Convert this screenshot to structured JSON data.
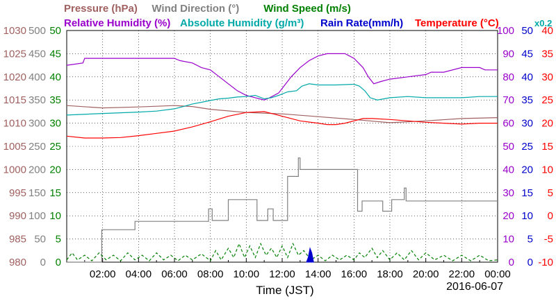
{
  "chart_data": {
    "type": "line",
    "date": "2016-06-07",
    "xlabel": "Time (JST)",
    "x_ticks": [
      "02:00",
      "04:00",
      "06:00",
      "08:00",
      "10:00",
      "12:00",
      "14:00",
      "16:00",
      "18:00",
      "20:00",
      "22:00",
      "00:00"
    ],
    "xlim_hours": [
      0,
      24
    ],
    "grid": true,
    "legend_row1": [
      {
        "name": "Pressure (hPa)",
        "color": "#a06060"
      },
      {
        "name": "Wind Direction (°)",
        "color": "#808080"
      },
      {
        "name": "Wind Speed (m/s)",
        "color": "#008000"
      }
    ],
    "legend_row2": [
      {
        "name": "Relative Humidity (%)",
        "color": "#9900cc"
      },
      {
        "name": "Absolute Humidity (g/m³)",
        "color": "#00a8a8"
      },
      {
        "name": "Rain Rate(mm/h)",
        "color": "#0000cc"
      },
      {
        "name": "Temperature (°C)",
        "color": "#ff0000"
      },
      {
        "name": "x0.2",
        "color": "#00a8a8"
      }
    ],
    "axes": [
      {
        "name": "Pressure",
        "unit": "hPa",
        "color": "#a06060",
        "ylim": [
          980,
          1030
        ],
        "ticks": [
          1030,
          1025,
          1020,
          1015,
          1010,
          1005,
          1000,
          995,
          990,
          985,
          980
        ]
      },
      {
        "name": "Wind Direction",
        "unit": "°",
        "color": "#808080",
        "ylim": [
          0,
          500
        ],
        "ticks": [
          500,
          450,
          400,
          350,
          300,
          250,
          200,
          150,
          100,
          50,
          0
        ]
      },
      {
        "name": "Wind Speed",
        "unit": "m/s",
        "color": "#008000",
        "ylim": [
          0,
          50
        ],
        "ticks": [
          50,
          45,
          40,
          35,
          30,
          25,
          20,
          15,
          10,
          5,
          0
        ]
      },
      {
        "name": "Relative Humidity",
        "unit": "%",
        "color": "#9900cc",
        "ylim": [
          0,
          100
        ],
        "ticks": [
          100,
          90,
          80,
          70,
          60,
          50,
          40,
          30,
          20,
          10,
          0
        ]
      },
      {
        "name": "Rain Rate",
        "unit": "mm/h",
        "color": "#0000cc",
        "ylim": [
          0,
          50
        ],
        "ticks": [
          50,
          45,
          40,
          35,
          30,
          25,
          20,
          15,
          10,
          5,
          0
        ]
      },
      {
        "name": "Temperature",
        "unit": "°C",
        "color": "#ff0000",
        "ylim": [
          -10,
          40
        ],
        "ticks": [
          40,
          35,
          30,
          25,
          20,
          15,
          10,
          5,
          0,
          -5,
          -10
        ]
      }
    ],
    "series": [
      {
        "name": "Pressure (hPa)",
        "axis": 0,
        "color": "#a06060",
        "points": [
          [
            0,
            1013.8
          ],
          [
            2,
            1013.3
          ],
          [
            4,
            1013.5
          ],
          [
            6,
            1013.8
          ],
          [
            7,
            1013.6
          ],
          [
            8,
            1013.0
          ],
          [
            10,
            1012.3
          ],
          [
            12,
            1012.0
          ],
          [
            14,
            1011.4
          ],
          [
            16,
            1010.8
          ],
          [
            18,
            1010.1
          ],
          [
            20,
            1010.5
          ],
          [
            22,
            1011.0
          ],
          [
            24,
            1011.2
          ]
        ]
      },
      {
        "name": "Wind Direction (°)",
        "axis": 1,
        "color": "#808080",
        "step": true,
        "points": [
          [
            0,
            0
          ],
          [
            1.95,
            0
          ],
          [
            1.95,
            70
          ],
          [
            3.8,
            70
          ],
          [
            3.8,
            88
          ],
          [
            7.9,
            88
          ],
          [
            7.9,
            115
          ],
          [
            8.1,
            115
          ],
          [
            8.1,
            90
          ],
          [
            9,
            90
          ],
          [
            9,
            135
          ],
          [
            10.6,
            135
          ],
          [
            10.6,
            90
          ],
          [
            11.2,
            90
          ],
          [
            11.2,
            115
          ],
          [
            11.5,
            115
          ],
          [
            11.5,
            90
          ],
          [
            12.3,
            90
          ],
          [
            12.3,
            185
          ],
          [
            12.9,
            185
          ],
          [
            12.9,
            225
          ],
          [
            13.0,
            225
          ],
          [
            13.0,
            200
          ],
          [
            16.2,
            200
          ],
          [
            16.2,
            110
          ],
          [
            16.45,
            110
          ],
          [
            16.45,
            132
          ],
          [
            17.6,
            132
          ],
          [
            17.6,
            110
          ],
          [
            18.1,
            110
          ],
          [
            18.1,
            135
          ],
          [
            18.8,
            135
          ],
          [
            18.8,
            160
          ],
          [
            18.9,
            160
          ],
          [
            18.9,
            132
          ],
          [
            24,
            132
          ]
        ]
      },
      {
        "name": "Wind Speed (m/s)",
        "axis": 2,
        "color": "#008000",
        "dashed": true,
        "points": [
          [
            0,
            0.5
          ],
          [
            0.3,
            2
          ],
          [
            0.6,
            0.5
          ],
          [
            1,
            1.5
          ],
          [
            1.4,
            0.3
          ],
          [
            1.8,
            2
          ],
          [
            2.2,
            0.5
          ],
          [
            2.6,
            1.5
          ],
          [
            3,
            0.3
          ],
          [
            3.4,
            2
          ],
          [
            3.8,
            0.5
          ],
          [
            4.2,
            1.5
          ],
          [
            4.6,
            0.3
          ],
          [
            5,
            2
          ],
          [
            5.4,
            0.5
          ],
          [
            5.8,
            1.5
          ],
          [
            6.2,
            0.3
          ],
          [
            6.6,
            1.5
          ],
          [
            7,
            0.5
          ],
          [
            7.5,
            1.8
          ],
          [
            8,
            0.3
          ],
          [
            8.3,
            2.5
          ],
          [
            8.6,
            0.5
          ],
          [
            9,
            3
          ],
          [
            9.3,
            1
          ],
          [
            9.6,
            4
          ],
          [
            9.9,
            1
          ],
          [
            10.2,
            3.5
          ],
          [
            10.5,
            1
          ],
          [
            10.8,
            4
          ],
          [
            11.1,
            1.5
          ],
          [
            11.4,
            3
          ],
          [
            11.7,
            1
          ],
          [
            12,
            3.5
          ],
          [
            12.3,
            1
          ],
          [
            12.6,
            4
          ],
          [
            12.9,
            1.5
          ],
          [
            13.2,
            2.5
          ],
          [
            13.6,
            0.5
          ],
          [
            14,
            1.5
          ],
          [
            14.4,
            0.3
          ],
          [
            14.8,
            1.5
          ],
          [
            15.2,
            0.5
          ],
          [
            15.6,
            1.5
          ],
          [
            16,
            0.5
          ],
          [
            16.3,
            2
          ],
          [
            16.6,
            1
          ],
          [
            17,
            3
          ],
          [
            17.3,
            1
          ],
          [
            17.6,
            2.5
          ],
          [
            18,
            0.5
          ],
          [
            18.4,
            2
          ],
          [
            18.8,
            0.5
          ],
          [
            19.2,
            2.5
          ],
          [
            19.6,
            0.5
          ],
          [
            20,
            2
          ],
          [
            20.5,
            0.5
          ],
          [
            21,
            1.5
          ],
          [
            21.5,
            0.3
          ],
          [
            22,
            1.5
          ],
          [
            22.5,
            0.3
          ],
          [
            23,
            1.5
          ],
          [
            23.5,
            0.3
          ],
          [
            24,
            0.5
          ]
        ]
      },
      {
        "name": "Relative Humidity (%)",
        "axis": 3,
        "color": "#9900cc",
        "points": [
          [
            0,
            85
          ],
          [
            0.9,
            86
          ],
          [
            1,
            88
          ],
          [
            2,
            88
          ],
          [
            6,
            88
          ],
          [
            6.3,
            87
          ],
          [
            7,
            86
          ],
          [
            7.5,
            84
          ],
          [
            8,
            83
          ],
          [
            8.5,
            80
          ],
          [
            9,
            77
          ],
          [
            9.5,
            74
          ],
          [
            10,
            72
          ],
          [
            10.5,
            71
          ],
          [
            11,
            70
          ],
          [
            11.3,
            71
          ],
          [
            11.8,
            73
          ],
          [
            12.2,
            77
          ],
          [
            12.5,
            80
          ],
          [
            13,
            84
          ],
          [
            13.5,
            87
          ],
          [
            14,
            89
          ],
          [
            14.5,
            90
          ],
          [
            15,
            90
          ],
          [
            15.5,
            90
          ],
          [
            16,
            88
          ],
          [
            16.5,
            84
          ],
          [
            16.8,
            80
          ],
          [
            17.1,
            77
          ],
          [
            17.5,
            78
          ],
          [
            18,
            79
          ],
          [
            19,
            80
          ],
          [
            20,
            81
          ],
          [
            20.3,
            82
          ],
          [
            21,
            82
          ],
          [
            22,
            84
          ],
          [
            23,
            84
          ],
          [
            23.3,
            83
          ],
          [
            24,
            83
          ]
        ]
      },
      {
        "name": "Absolute Humidity (g/m³)",
        "axis": 3,
        "color": "#00a8a8",
        "points": [
          [
            0,
            63.5
          ],
          [
            2,
            64.2
          ],
          [
            4,
            64.8
          ],
          [
            5,
            65.2
          ],
          [
            6,
            66.2
          ],
          [
            6.5,
            67.2
          ],
          [
            7,
            68.3
          ],
          [
            7.5,
            69
          ],
          [
            8,
            69.8
          ],
          [
            8.5,
            70.5
          ],
          [
            9,
            70.8
          ],
          [
            9.5,
            71.3
          ],
          [
            10,
            71.5
          ],
          [
            10.5,
            72
          ],
          [
            11,
            70.5
          ],
          [
            11.4,
            71
          ],
          [
            11.8,
            72
          ],
          [
            12.3,
            73.5
          ],
          [
            12.8,
            74
          ],
          [
            13.1,
            76
          ],
          [
            13.5,
            77
          ],
          [
            14,
            76.5
          ],
          [
            15,
            76.5
          ],
          [
            16,
            76.8
          ],
          [
            16.3,
            76
          ],
          [
            16.6,
            74
          ],
          [
            16.9,
            71
          ],
          [
            17.3,
            70
          ],
          [
            18,
            71
          ],
          [
            19,
            71.5
          ],
          [
            20,
            71
          ],
          [
            21,
            71
          ],
          [
            22,
            71
          ],
          [
            23,
            71.5
          ],
          [
            24,
            71.5
          ]
        ]
      },
      {
        "name": "Rain Rate(mm/h)",
        "axis": 4,
        "color": "#0000cc",
        "area": true,
        "points": [
          [
            13.35,
            0
          ],
          [
            13.45,
            1
          ],
          [
            13.55,
            3
          ],
          [
            13.65,
            2
          ],
          [
            13.75,
            0
          ]
        ]
      },
      {
        "name": "Temperature (°C)",
        "axis": 5,
        "color": "#ff0000",
        "points": [
          [
            0,
            17.2
          ],
          [
            1,
            16.8
          ],
          [
            2,
            16.8
          ],
          [
            3,
            16.9
          ],
          [
            4,
            17.3
          ],
          [
            5,
            17.8
          ],
          [
            6,
            18.3
          ],
          [
            7,
            19.2
          ],
          [
            8,
            20.3
          ],
          [
            9,
            21.5
          ],
          [
            10,
            22.3
          ],
          [
            11,
            22.5
          ],
          [
            11.5,
            22
          ],
          [
            12,
            21.5
          ],
          [
            13,
            20.5
          ],
          [
            14,
            20.0
          ],
          [
            14.5,
            19.7
          ],
          [
            15,
            19.7
          ],
          [
            15.5,
            20
          ],
          [
            16,
            20.5
          ],
          [
            16.5,
            21
          ],
          [
            17,
            21
          ],
          [
            18,
            20.8
          ],
          [
            19,
            20.5
          ],
          [
            20,
            20.2
          ],
          [
            21,
            20
          ],
          [
            22,
            19.8
          ],
          [
            23,
            20
          ],
          [
            24,
            20
          ]
        ]
      }
    ]
  }
}
